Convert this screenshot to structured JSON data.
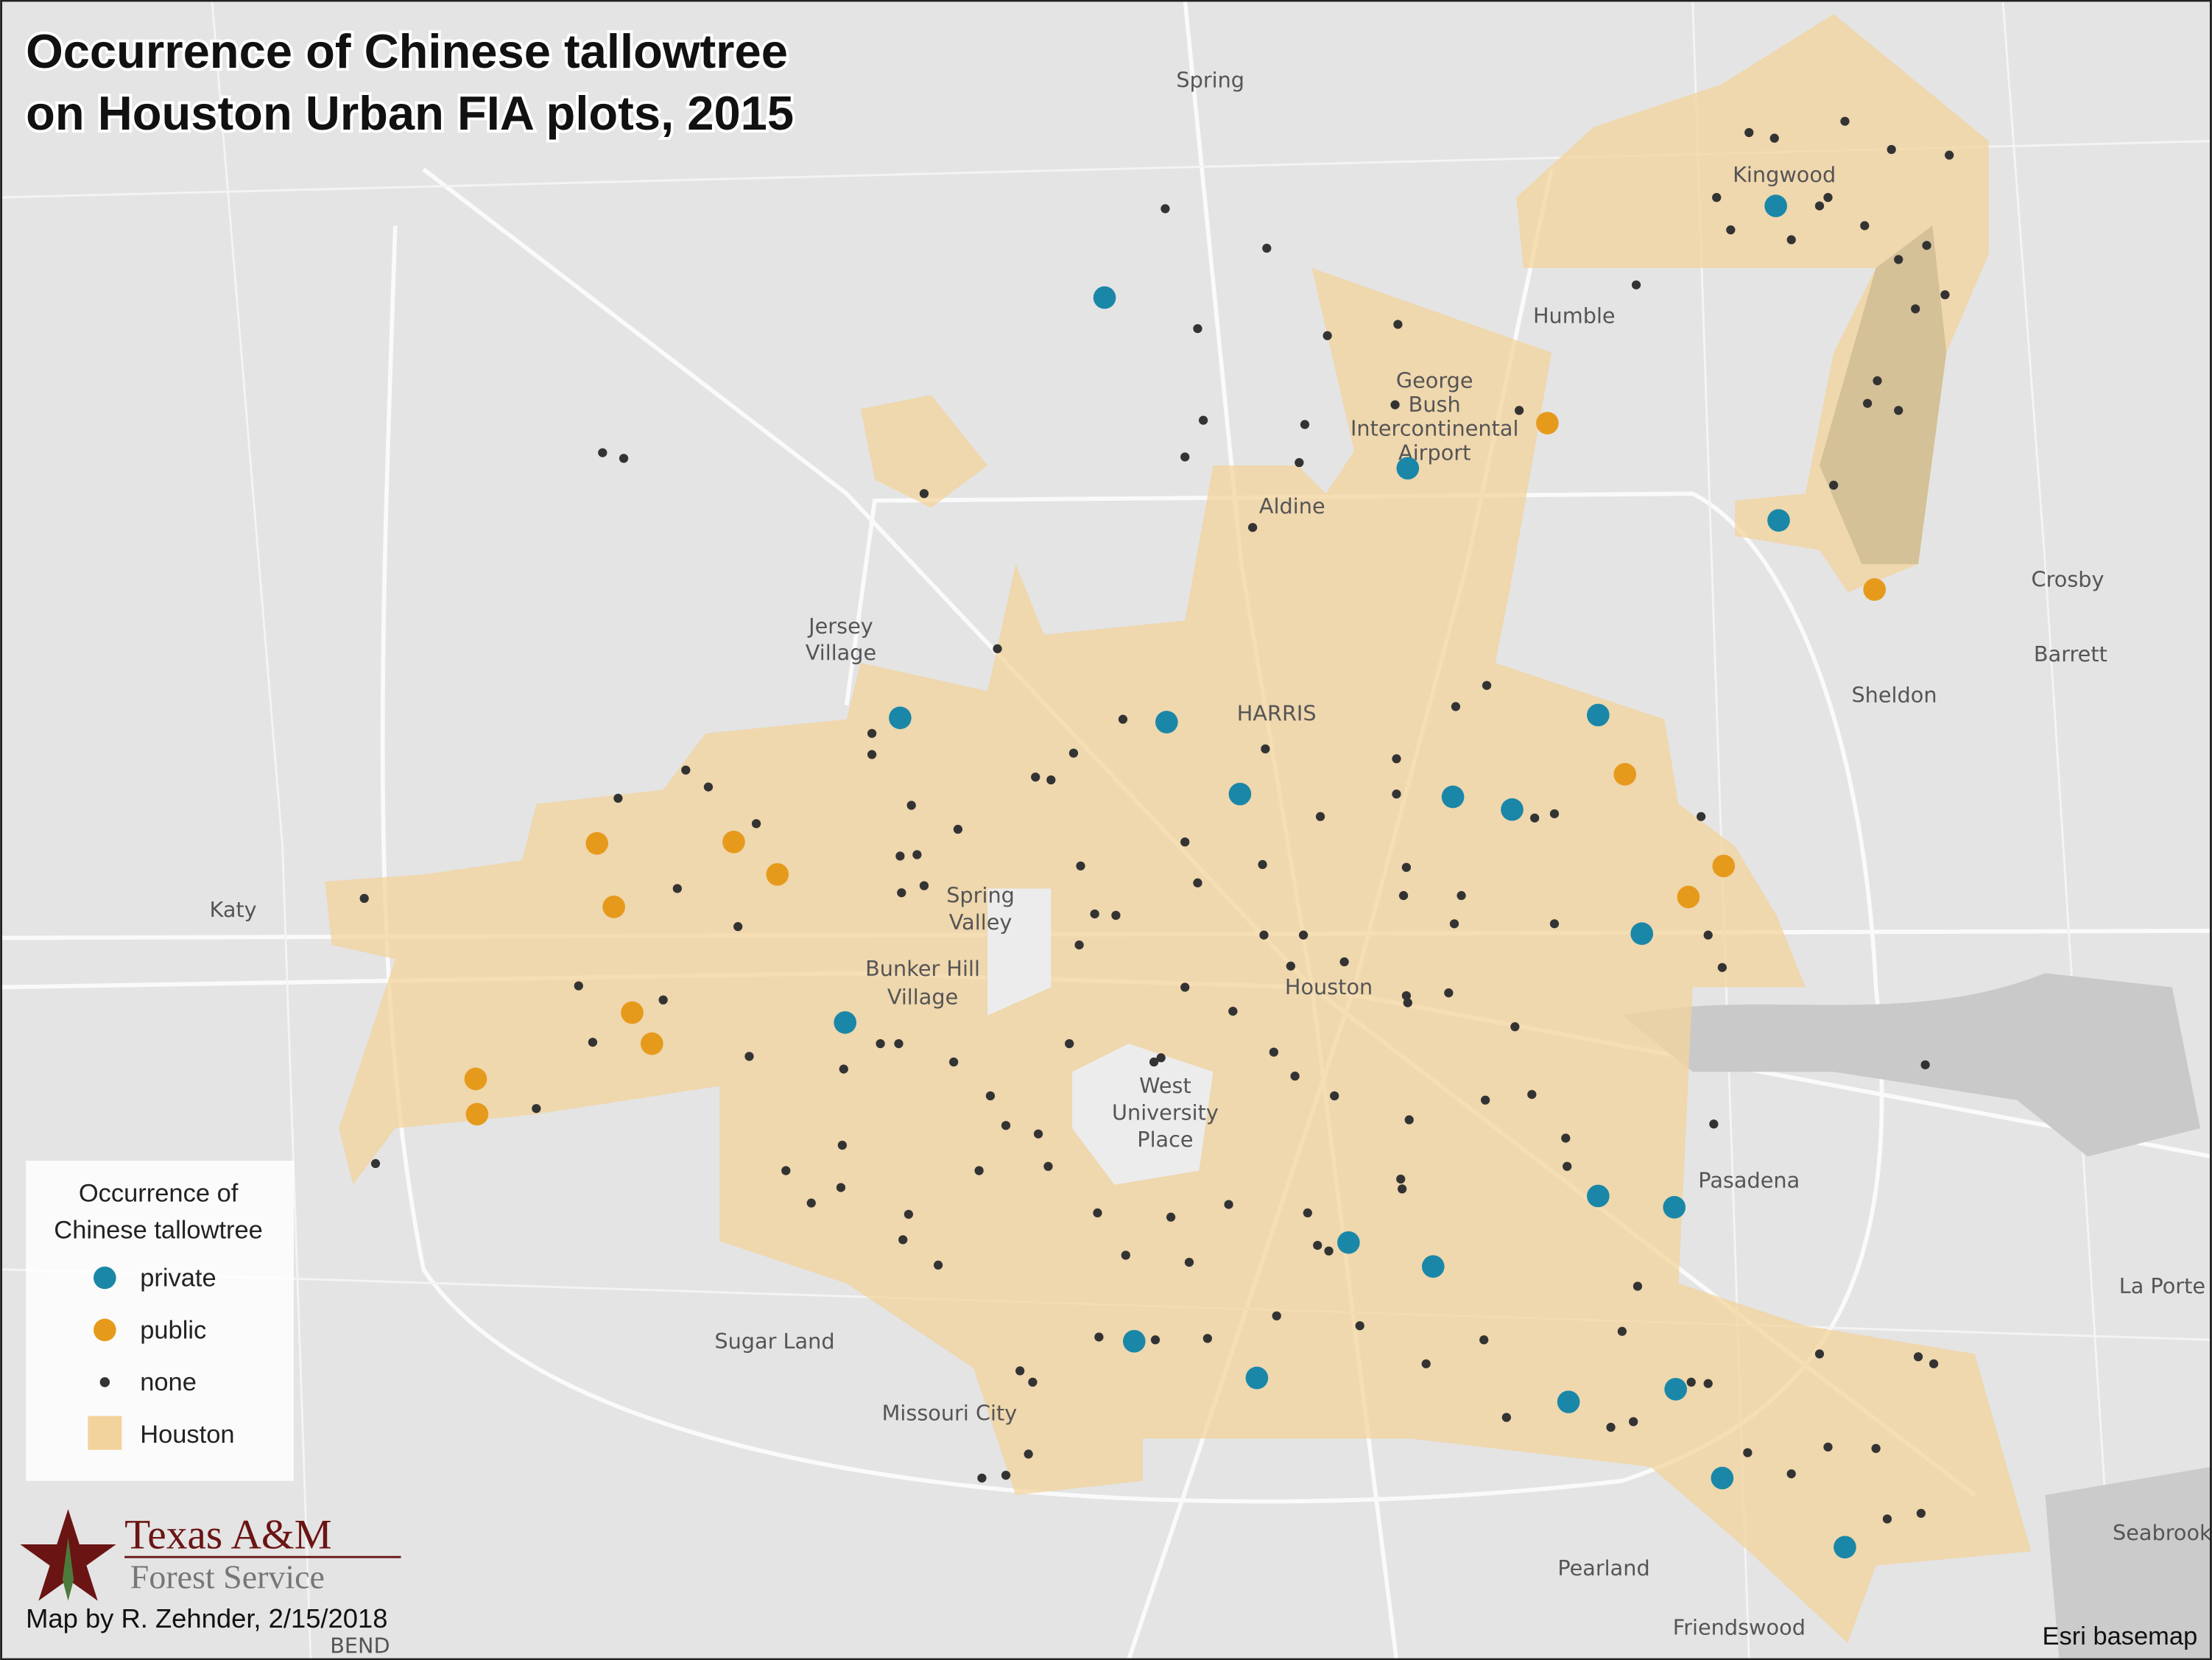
{
  "title": {
    "line1": "Occurrence of Chinese tallowtree",
    "line2": "on Houston Urban FIA plots, 2015"
  },
  "places": [
    {
      "lines": [
        "Spring"
      ]
    },
    {
      "lines": [
        "Kingwood"
      ]
    },
    {
      "lines": [
        "Humble"
      ]
    },
    {
      "lines": [
        "George",
        "Bush",
        "Intercontinental",
        "Airport"
      ]
    },
    {
      "lines": [
        "Aldine"
      ]
    },
    {
      "lines": [
        "Crosby"
      ]
    },
    {
      "lines": [
        "Barrett"
      ]
    },
    {
      "lines": [
        "Sheldon"
      ]
    },
    {
      "lines": [
        "Jersey",
        "Village"
      ]
    },
    {
      "lines": [
        "HARRIS"
      ]
    },
    {
      "lines": [
        "Katy"
      ]
    },
    {
      "lines": [
        "Spring",
        "Valley"
      ]
    },
    {
      "lines": [
        "Bunker Hill",
        "Village"
      ]
    },
    {
      "lines": [
        "Houston"
      ]
    },
    {
      "lines": [
        "West",
        "University",
        "Place"
      ]
    },
    {
      "lines": [
        "Pasadena"
      ]
    },
    {
      "lines": [
        "La Porte"
      ]
    },
    {
      "lines": [
        "Sugar Land"
      ]
    },
    {
      "lines": [
        "Missouri City"
      ]
    },
    {
      "lines": [
        "Pearland"
      ]
    },
    {
      "lines": [
        "Friendswood"
      ]
    },
    {
      "lines": [
        "Seabrook"
      ]
    },
    {
      "lines": [
        "BEND"
      ]
    }
  ],
  "legend": {
    "title": [
      "Occurrence of",
      "Chinese tallowtree"
    ],
    "items": [
      "private",
      "public",
      "none",
      "Houston"
    ]
  },
  "logo": {
    "line1": "Texas A&M",
    "line2": "Forest Service"
  },
  "credit": "Map by R. Zehnder, 2/15/2018",
  "basemap": "Esri basemap"
}
